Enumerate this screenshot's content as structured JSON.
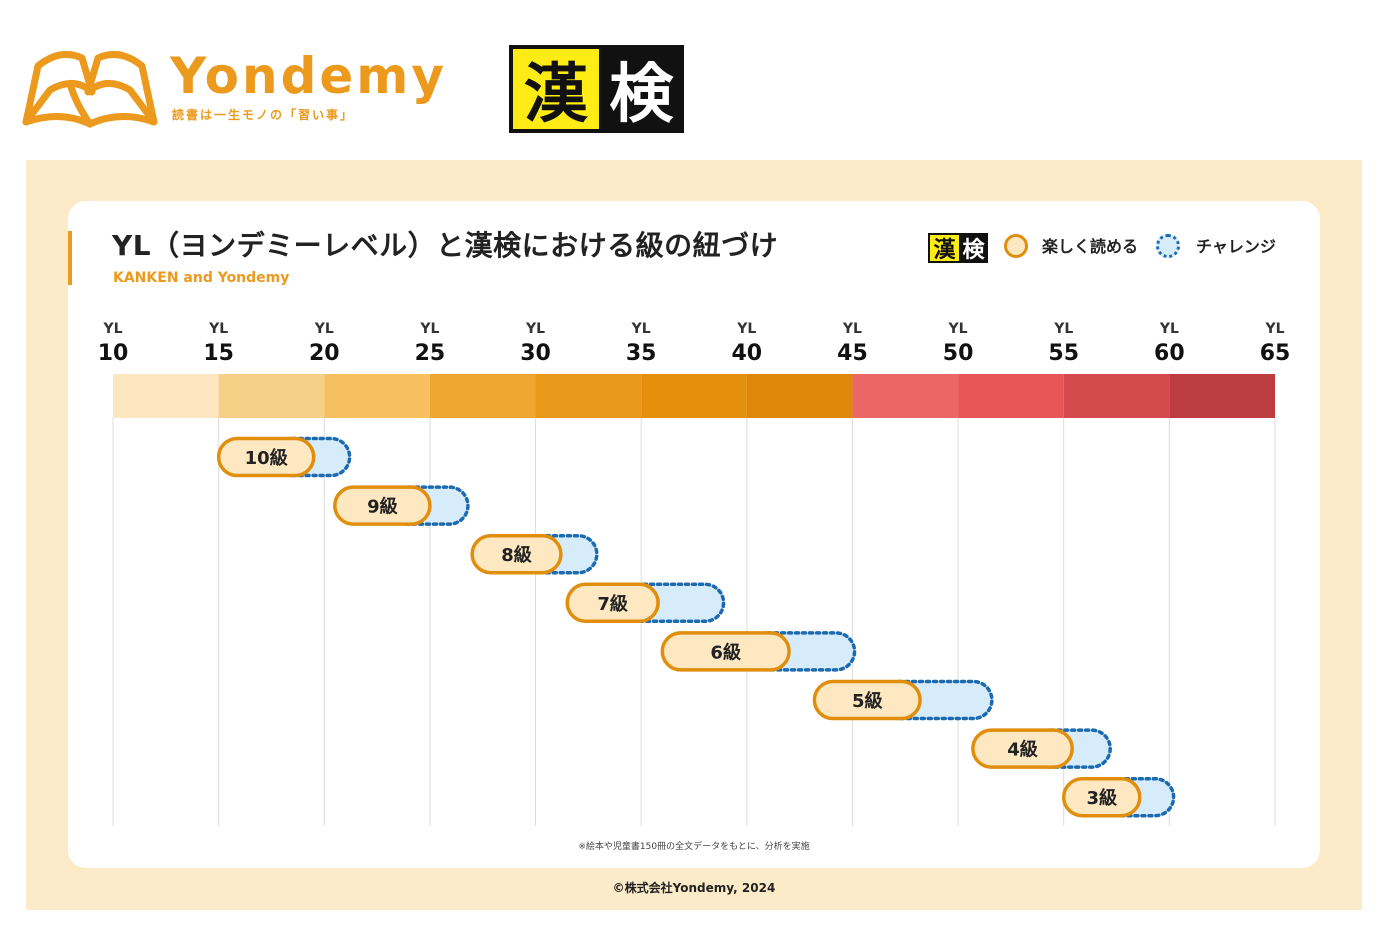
{
  "header": {
    "brand_name": "Yondemy",
    "brand_tagline": "読書は一生モノの「習い事」",
    "kanken_logo": {
      "char1": "漢",
      "char2": "検"
    }
  },
  "chart_data": {
    "type": "range-bar",
    "title": "YL（ヨンデミーレベル）と漢検における級の紐づけ",
    "subtitle": "KANKEN and Yondemy",
    "axis": {
      "prefix": "YL",
      "ticks": [
        10,
        15,
        20,
        25,
        30,
        35,
        40,
        45,
        50,
        55,
        60,
        65
      ],
      "xlim": [
        10,
        65
      ]
    },
    "legend": {
      "logo": {
        "char1": "漢",
        "char2": "検"
      },
      "easy_label": "楽しく読める",
      "challenge_label": "チャレンジ"
    },
    "level_band_colors": [
      "#fde7c0",
      "#f7d088",
      "#f6c061",
      "#efa732",
      "#e9981a",
      "#e48f0b",
      "#de8708",
      "#ea6766",
      "#e85557",
      "#d54b4d",
      "#bd3c3f"
    ],
    "grades": [
      {
        "label": "10級",
        "easy": [
          15,
          19.5
        ],
        "challenge": [
          19.5,
          21.2
        ]
      },
      {
        "label": "9級",
        "easy": [
          20.5,
          25
        ],
        "challenge": [
          25,
          26.8
        ]
      },
      {
        "label": "8級",
        "easy": [
          27,
          31.2
        ],
        "challenge": [
          31.2,
          32.9
        ]
      },
      {
        "label": "7級",
        "easy": [
          31.5,
          35.8
        ],
        "challenge": [
          35.8,
          38.9
        ]
      },
      {
        "label": "6級",
        "easy": [
          36,
          42
        ],
        "challenge": [
          42,
          45.1
        ]
      },
      {
        "label": "5級",
        "easy": [
          43.2,
          48.2
        ],
        "challenge": [
          48.2,
          51.6
        ]
      },
      {
        "label": "4級",
        "easy": [
          50.7,
          55.4
        ],
        "challenge": [
          55.4,
          57.2
        ]
      },
      {
        "label": "3級",
        "easy": [
          55,
          58.6
        ],
        "challenge": [
          58.6,
          60.2
        ]
      }
    ]
  },
  "colors": {
    "accent": "#eb9a1e",
    "easy_fill": "#fde8c2",
    "easy_stroke": "#e08e0b",
    "challenge_fill": "#d6ecfa",
    "challenge_stroke": "#1c6bb1",
    "panel_bg": "#fcebc9"
  },
  "footnote": "※絵本や児童書150冊の全文データをもとに、分析を実施",
  "copyright": "©株式会社Yondemy, 2024"
}
